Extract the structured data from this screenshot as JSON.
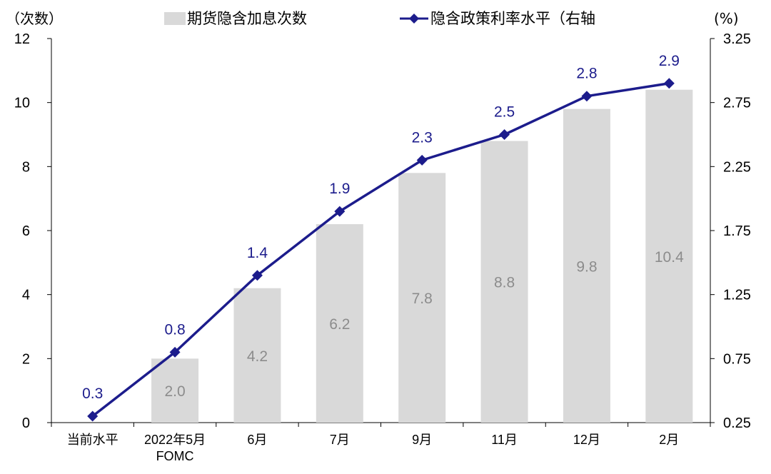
{
  "chart_data": {
    "type": "bar+line",
    "categories": [
      "当前水平",
      "2022年5月\nFOMC",
      "6月",
      "7月",
      "9月",
      "11月",
      "12月",
      "2月"
    ],
    "series": [
      {
        "name": "期货隐含加息次数",
        "type": "bar",
        "axis": "left",
        "color": "#d9d9d9",
        "values": [
          null,
          2.0,
          4.2,
          6.2,
          7.8,
          8.8,
          9.8,
          10.4
        ]
      },
      {
        "name": "隐含政策利率水平（右轴",
        "type": "line",
        "axis": "right",
        "color": "#1c1c8c",
        "marker": "diamond",
        "values": [
          0.3,
          0.8,
          1.4,
          1.9,
          2.3,
          2.5,
          2.8,
          2.9
        ]
      }
    ],
    "left_axis": {
      "unit_label": "（次数）",
      "min": 0,
      "max": 12,
      "ticks": [
        0,
        2,
        4,
        6,
        8,
        10,
        12
      ]
    },
    "right_axis": {
      "unit_label": "(%)",
      "min": 0.25,
      "max": 3.25,
      "ticks": [
        "0.25",
        "0.75",
        "1.25",
        "1.75",
        "2.25",
        "2.75",
        "3.25"
      ]
    },
    "legend_position": "top",
    "grid": false
  }
}
